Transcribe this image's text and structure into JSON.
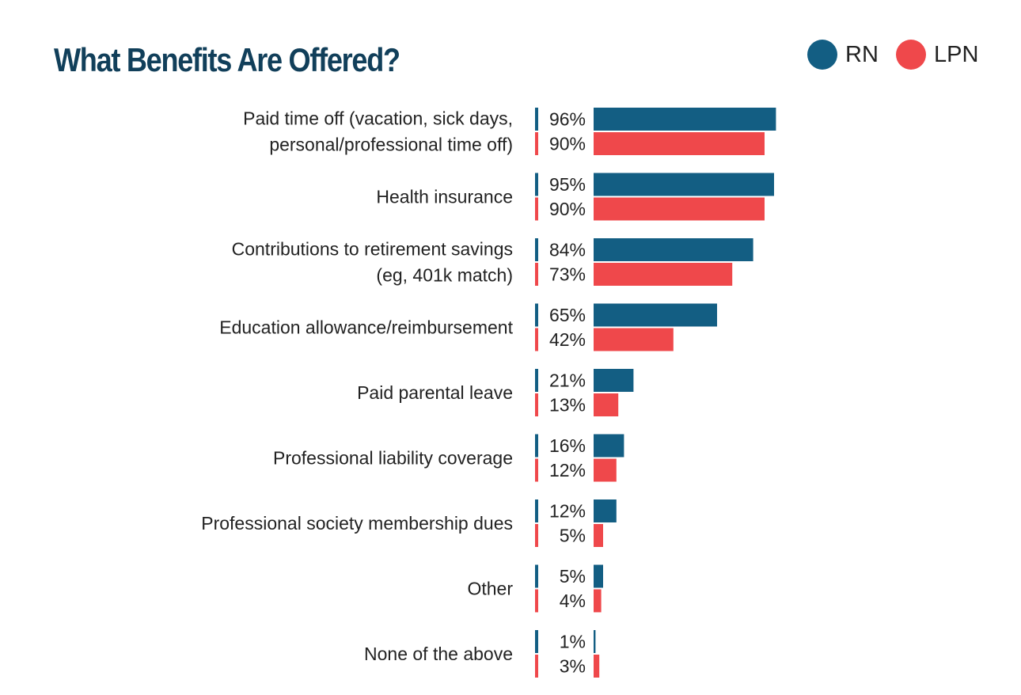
{
  "chart_data": {
    "type": "bar",
    "orientation": "horizontal",
    "title": "What Benefits Are Offered?",
    "categories": [
      [
        "Paid time off (vacation, sick days,",
        "personal/professional time off)"
      ],
      [
        "Health insurance"
      ],
      [
        "Contributions to retirement savings",
        "(eg, 401k match)"
      ],
      [
        "Education allowance/reimbursement"
      ],
      [
        "Paid parental leave"
      ],
      [
        "Professional liability coverage"
      ],
      [
        "Professional society membership dues"
      ],
      [
        "Other"
      ],
      [
        "None of the above"
      ]
    ],
    "series": [
      {
        "name": "RN",
        "color": "#135e83",
        "values": [
          96,
          95,
          84,
          65,
          21,
          16,
          12,
          5,
          1
        ]
      },
      {
        "name": "LPN",
        "color": "#ef484b",
        "values": [
          90,
          90,
          73,
          42,
          13,
          12,
          5,
          4,
          3
        ]
      }
    ],
    "value_suffix": "%",
    "xlim": [
      0,
      100
    ],
    "grid": false,
    "legend_position": "top-right"
  }
}
